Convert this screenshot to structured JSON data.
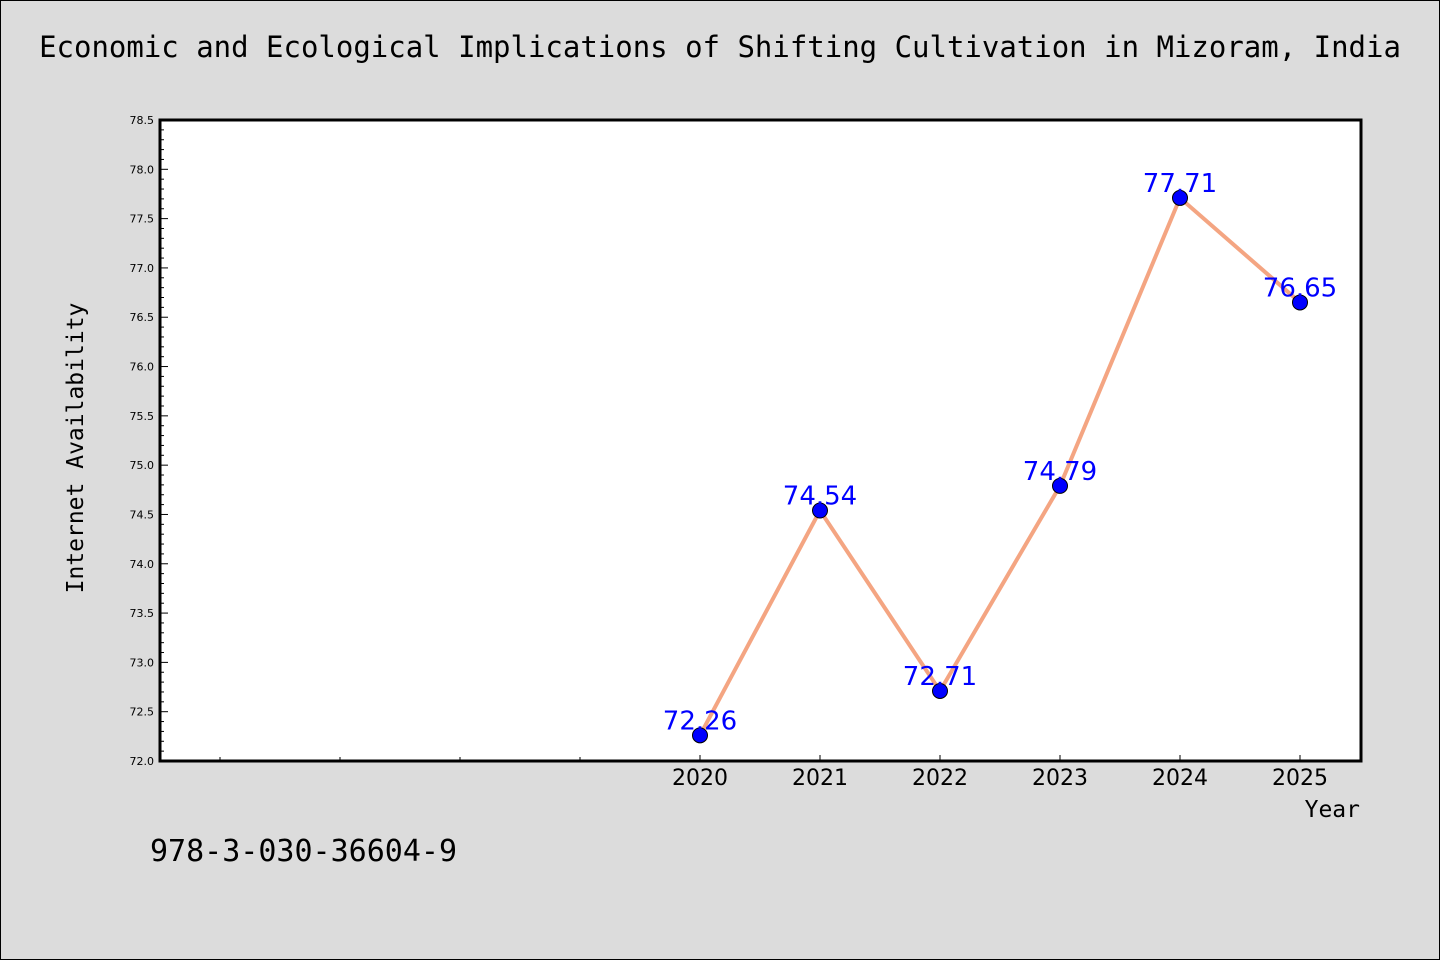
{
  "chart_data": {
    "type": "line",
    "title": "Economic and Ecological Implications of Shifting Cultivation in Mizoram, India",
    "xlabel": "Year",
    "ylabel": "Internet Availability",
    "x": [
      "2020",
      "2021",
      "2022",
      "2023",
      "2024",
      "2025"
    ],
    "series": [
      {
        "values": [
          72.26,
          74.54,
          72.71,
          74.79,
          77.71,
          76.65
        ]
      }
    ],
    "data_labels": [
      "72.26",
      "74.54",
      "72.71",
      "74.79",
      "77.71",
      "76.65"
    ],
    "ylim": [
      72.0,
      78.5
    ],
    "yticks": [
      "72.0",
      "72.5",
      "73.0",
      "73.5",
      "74.0",
      "74.5",
      "75.0",
      "75.5",
      "76.0",
      "76.5",
      "77.0",
      "77.5",
      "78.0",
      "78.5"
    ],
    "grid": false,
    "legend": "none",
    "colors": {
      "line": "#f4a582",
      "marker": "#0000ff",
      "label": "#0000ff",
      "background": "#dcdcdc",
      "plot_background": "#ffffff"
    }
  },
  "footnote": "978-3-030-36604-9"
}
